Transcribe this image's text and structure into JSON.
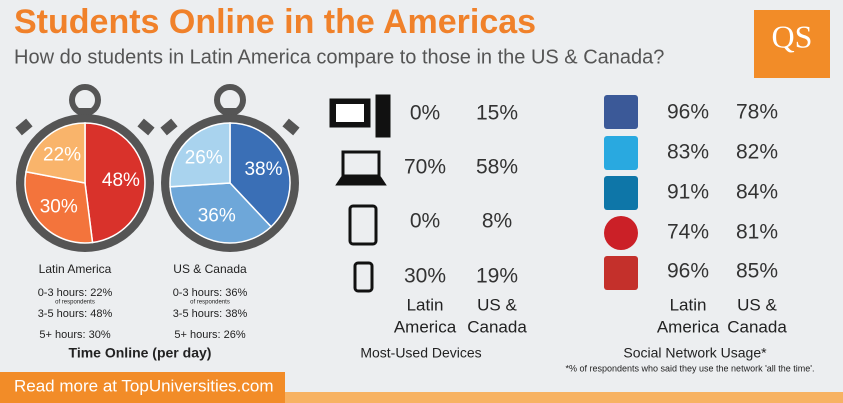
{
  "header": {
    "title": "Students Online in the Americas",
    "subtitle": "How do students in Latin America compare to those in the US & Canada?",
    "logo": "QS"
  },
  "time_online": {
    "title": "Time Online (per day)",
    "legend_note": "of respondents",
    "pies": [
      {
        "name": "Latin America",
        "values": [
          48,
          30,
          22
        ],
        "value_labels": [
          "48%",
          "30%",
          "22%"
        ],
        "colors": [
          "#d9322b",
          "#f3743c",
          "#f9b46b"
        ],
        "legend": [
          "0-3 hours: 22%",
          "3-5 hours: 48%",
          "5+ hours: 30%"
        ]
      },
      {
        "name": "US & Canada",
        "values": [
          38,
          36,
          26
        ],
        "value_labels": [
          "38%",
          "36%",
          "26%"
        ],
        "colors": [
          "#3a6fb6",
          "#6ea7d9",
          "#a9d3ee"
        ],
        "legend": [
          "0-3 hours: 36%",
          "3-5 hours: 38%",
          "5+ hours: 26%"
        ]
      }
    ]
  },
  "devices": {
    "title": "Most-Used Devices",
    "column_headers": [
      [
        "Latin",
        "America"
      ],
      [
        "US &",
        "Canada"
      ]
    ],
    "rows": [
      [
        "0%",
        "15%"
      ],
      [
        "70%",
        "58%"
      ],
      [
        "0%",
        "8%"
      ],
      [
        "30%",
        "19%"
      ]
    ]
  },
  "social": {
    "title": "Social Network Usage*",
    "footnote": "*% of respondents who said they use the network 'all the time'.",
    "column_headers": [
      [
        "Latin",
        "America"
      ],
      [
        "US &",
        "Canada"
      ]
    ],
    "rows": [
      [
        "96%",
        "78%"
      ],
      [
        "83%",
        "82%"
      ],
      [
        "91%",
        "84%"
      ],
      [
        "74%",
        "81%"
      ],
      [
        "96%",
        "85%"
      ]
    ]
  },
  "footer": {
    "link": "Read more at TopUniversities.com"
  }
}
